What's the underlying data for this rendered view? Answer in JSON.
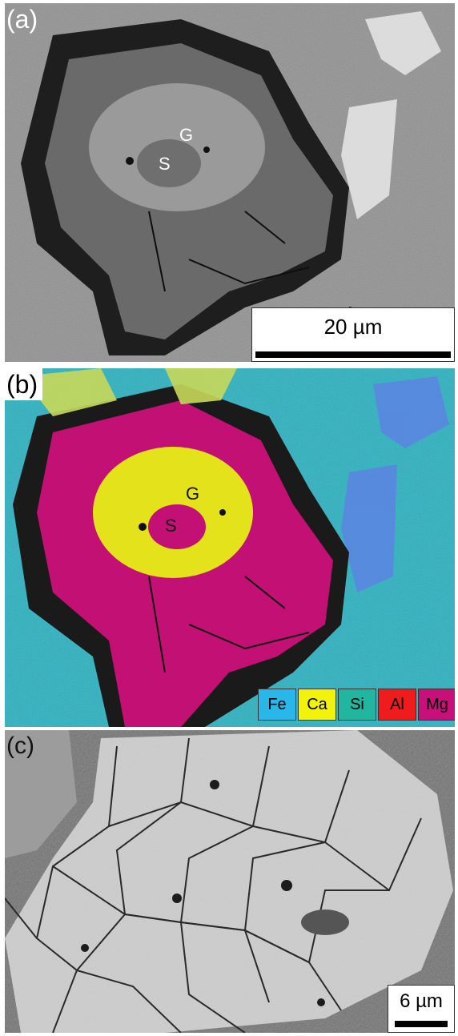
{
  "panels": {
    "a": {
      "tag": "(a)",
      "phase_g": "G",
      "phase_s": "S",
      "scale_label": "20 µm"
    },
    "b": {
      "tag": "(b)",
      "phase_g": "G",
      "phase_s": "S",
      "legend": [
        {
          "label": "Fe",
          "color": "#29B6E8"
        },
        {
          "label": "Ca",
          "color": "#F2F20A"
        },
        {
          "label": "Si",
          "color": "#22B6A0"
        },
        {
          "label": "Al",
          "color": "#EE1C1C"
        },
        {
          "label": "Mg",
          "color": "#C8107A"
        }
      ]
    },
    "c": {
      "tag": "(c)",
      "scale_label": "6 µm"
    }
  }
}
